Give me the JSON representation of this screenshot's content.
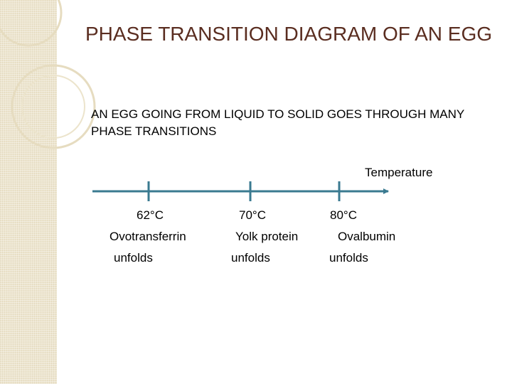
{
  "slide": {
    "title": "PHASE TRANSITION DIAGRAM OF AN EGG",
    "subtitle": "AN EGG GOING FROM LIQUID TO SOLID GOES THROUGH MANY PHASE TRANSITIONS"
  },
  "timeline": {
    "axis_label": "Temperature",
    "line_color": "#3a7a90",
    "events": [
      {
        "temperature": "62°C",
        "protein": "Ovotransferrin",
        "action": "unfolds"
      },
      {
        "temperature": "70°C",
        "protein": "Yolk protein",
        "action": "unfolds"
      },
      {
        "temperature": "80°C",
        "protein": "Ovalbumin",
        "action": "unfolds"
      }
    ]
  }
}
